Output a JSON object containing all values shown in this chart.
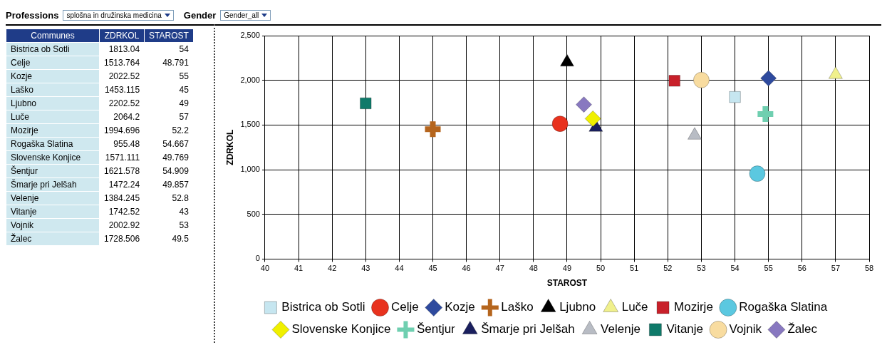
{
  "chart_data": [
    {
      "type": "other",
      "annotations": [
        "Professions",
        "splošna in družinska medicina",
        "Gender",
        "Gender_all",
        "Communes",
        "ZDRKOL",
        "STAROST",
        "Bistrica ob Sotli",
        "1813.04",
        "54",
        "Celje",
        "1513.764",
        "48.791",
        "Kozje",
        "2022.52",
        "55",
        "Laško",
        "1453.115",
        "45",
        "Ljubno",
        "2202.52",
        "49",
        "Luče",
        "2064.2",
        "57",
        "Mozirje",
        "1994.696",
        "52.2",
        "Rogaška Slatina",
        "955.48",
        "54.667",
        "Slovenske Konjice",
        "1571.111",
        "49.769",
        "Šentjur",
        "1621.578",
        "54.909",
        "Šmarje pri Jelšah",
        "1472.24",
        "49.857",
        "Velenje",
        "1384.245",
        "52.8",
        "Vitanje",
        "1742.52",
        "43",
        "Vojnik",
        "2002.92",
        "53",
        "Žalec",
        "1728.506",
        "49.5"
      ]
    },
    {
      "type": "scatter",
      "xlabel": "STAROST",
      "ylabel": "ZDRKOL",
      "xlim": [
        40,
        58
      ],
      "xticks": [
        40,
        41,
        42,
        43,
        44,
        45,
        46,
        47,
        48,
        49,
        50,
        51,
        52,
        53,
        54,
        55,
        56,
        57,
        58
      ],
      "ylim": [
        0,
        2500
      ],
      "yticks": [
        0,
        500,
        {
          "value": 1000,
          "label": "1,000"
        },
        {
          "value": 1500,
          "label": "1,500"
        },
        {
          "value": 2000,
          "label": "2,000"
        },
        {
          "value": 2500,
          "label": "2,500"
        }
      ],
      "grid": true,
      "legend": "bottom",
      "series": [
        {
          "name": "Bistrica ob Sotli",
          "color": "#c6e6f0",
          "marker": "square",
          "x": [
            54
          ],
          "values": [
            1813.04
          ]
        },
        {
          "name": "Celje",
          "color": "#e8321e",
          "marker": "circle",
          "x": [
            48.791
          ],
          "values": [
            1513.764
          ]
        },
        {
          "name": "Kozje",
          "color": "#2e4a9e",
          "marker": "diamond",
          "x": [
            55
          ],
          "values": [
            2022.52
          ]
        },
        {
          "name": "Laško",
          "color": "#b5651d",
          "marker": "cross",
          "x": [
            45
          ],
          "values": [
            1453.115
          ]
        },
        {
          "name": "Ljubno",
          "color": "#000000",
          "marker": "triangle",
          "x": [
            49
          ],
          "values": [
            2202.52
          ]
        },
        {
          "name": "Luče",
          "color": "#f0f08c",
          "marker": "triangle",
          "x": [
            57
          ],
          "values": [
            2064.2
          ]
        },
        {
          "name": "Mozirje",
          "color": "#c8202a",
          "marker": "square",
          "x": [
            52.2
          ],
          "values": [
            1994.696
          ]
        },
        {
          "name": "Rogaška Slatina",
          "color": "#5bc8e0",
          "marker": "circle",
          "x": [
            54.667
          ],
          "values": [
            955.48
          ]
        },
        {
          "name": "Slovenske Konjice",
          "color": "#f0f000",
          "marker": "diamond",
          "x": [
            49.769
          ],
          "values": [
            1571.111
          ]
        },
        {
          "name": "Šentjur",
          "color": "#6fcfb0",
          "marker": "cross",
          "x": [
            54.909
          ],
          "values": [
            1621.578
          ]
        },
        {
          "name": "Šmarje pri Jelšah",
          "color": "#1a1f5e",
          "marker": "triangle",
          "x": [
            49.857
          ],
          "values": [
            1472.24
          ]
        },
        {
          "name": "Velenje",
          "color": "#b8bcc4",
          "marker": "triangle",
          "x": [
            52.8
          ],
          "values": [
            1384.245
          ]
        },
        {
          "name": "Vitanje",
          "color": "#0f7a6a",
          "marker": "square",
          "x": [
            43
          ],
          "values": [
            1742.52
          ]
        },
        {
          "name": "Vojnik",
          "color": "#f8dca0",
          "marker": "circle",
          "x": [
            53
          ],
          "values": [
            2002.92
          ]
        },
        {
          "name": "Žalec",
          "color": "#8878c0",
          "marker": "diamond",
          "x": [
            49.5
          ],
          "values": [
            1728.506
          ]
        }
      ]
    }
  ]
}
